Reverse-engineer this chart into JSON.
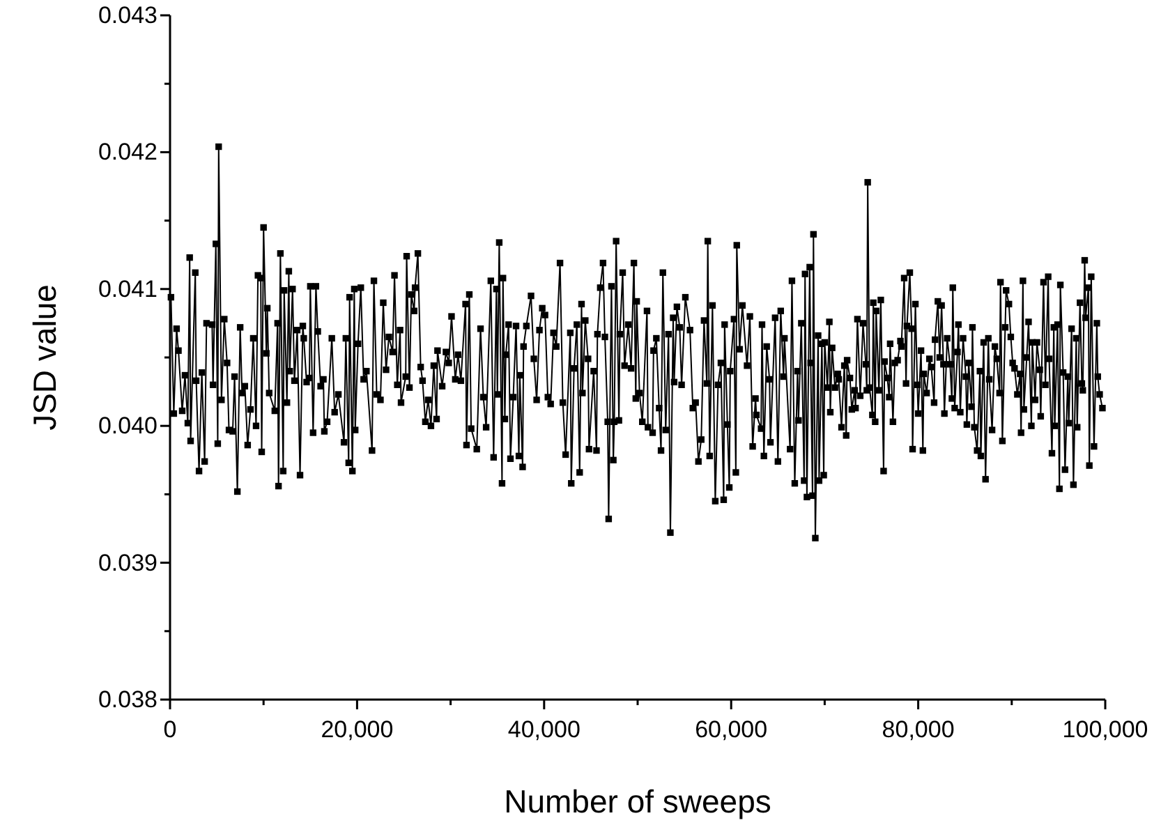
{
  "chart_data": {
    "type": "line",
    "xlabel": "Number of sweeps",
    "ylabel": "JSD value",
    "marker": "square",
    "line_style": "solid",
    "grid": false,
    "xlim": [
      0,
      100000
    ],
    "ylim": [
      0.038,
      0.043
    ],
    "xticks": [
      {
        "value": 0,
        "label": "0"
      },
      {
        "value": 10000,
        "label": null
      },
      {
        "value": 20000,
        "label": "20,000"
      },
      {
        "value": 30000,
        "label": null
      },
      {
        "value": 40000,
        "label": "40,000"
      },
      {
        "value": 50000,
        "label": null
      },
      {
        "value": 60000,
        "label": "60,000"
      },
      {
        "value": 70000,
        "label": null
      },
      {
        "value": 80000,
        "label": "80,000"
      },
      {
        "value": 90000,
        "label": null
      },
      {
        "value": 100000,
        "label": "100,000"
      }
    ],
    "yticks": [
      0.038,
      {
        "value": 0.0385,
        "label": null
      },
      0.039,
      {
        "value": 0.0395,
        "label": null
      },
      {
        "value": 0.04,
        "label": "0.040"
      },
      {
        "value": 0.0405,
        "label": null
      },
      0.041,
      {
        "value": 0.0415,
        "label": null
      },
      0.042,
      {
        "value": 0.0425,
        "label": null
      },
      0.043
    ],
    "series": [
      {
        "color": "#000000",
        "x": [
          100,
          400,
          700,
          900,
          1300,
          1600,
          1900,
          2100,
          2200,
          2700,
          2800,
          3100,
          3400,
          3700,
          3900,
          4500,
          4600,
          4900,
          5100,
          5200,
          5500,
          5800,
          6100,
          6300,
          6700,
          6900,
          7200,
          7500,
          7700,
          8000,
          8300,
          8600,
          8900,
          9200,
          9400,
          9700,
          9800,
          10000,
          10300,
          10400,
          10600,
          11200,
          11500,
          11600,
          11800,
          12100,
          12200,
          12500,
          12700,
          12800,
          13100,
          13300,
          13600,
          13900,
          14200,
          14300,
          14600,
          14900,
          15000,
          15300,
          15600,
          15800,
          16100,
          16400,
          16500,
          16800,
          17300,
          17600,
          18000,
          18600,
          18800,
          19100,
          19200,
          19500,
          19700,
          19800,
          20100,
          20400,
          20700,
          21000,
          21600,
          21800,
          22100,
          22500,
          22800,
          23100,
          23400,
          23800,
          24000,
          24300,
          24600,
          24700,
          25200,
          25300,
          25600,
          25800,
          26100,
          26200,
          26500,
          26800,
          27000,
          27300,
          27600,
          27900,
          28200,
          28500,
          28600,
          29100,
          29500,
          29800,
          30100,
          30500,
          30800,
          31100,
          31600,
          31700,
          32000,
          32200,
          32800,
          33200,
          33500,
          33800,
          34300,
          34600,
          34900,
          35000,
          35200,
          35500,
          35600,
          35800,
          35900,
          36200,
          36400,
          36700,
          37000,
          37300,
          37400,
          37700,
          37800,
          38100,
          38600,
          38900,
          39200,
          39500,
          39800,
          40100,
          40400,
          40700,
          41000,
          41300,
          41700,
          42000,
          42300,
          42800,
          42900,
          43200,
          43500,
          43800,
          44000,
          44100,
          44400,
          44700,
          44800,
          45300,
          45600,
          45700,
          46000,
          46300,
          46500,
          46800,
          46900,
          47200,
          47400,
          47500,
          47700,
          48000,
          48100,
          48400,
          48600,
          49000,
          49300,
          49600,
          49800,
          49900,
          50200,
          50500,
          51000,
          51100,
          51600,
          51700,
          52000,
          52300,
          52500,
          52700,
          53000,
          53300,
          53500,
          53800,
          53900,
          54200,
          54500,
          54700,
          55100,
          55600,
          55900,
          56200,
          56500,
          56800,
          57100,
          57400,
          57500,
          57700,
          58000,
          58300,
          58600,
          58900,
          59200,
          59300,
          59600,
          59800,
          59900,
          60300,
          60500,
          60600,
          60900,
          61200,
          61700,
          62000,
          62300,
          62600,
          62700,
          63200,
          63300,
          63500,
          63800,
          64100,
          64200,
          64700,
          65000,
          65300,
          65600,
          65700,
          66300,
          66500,
          66800,
          67100,
          67200,
          67500,
          67800,
          67900,
          68100,
          68400,
          68500,
          68700,
          68800,
          69000,
          69300,
          69400,
          69700,
          69900,
          70000,
          70300,
          70500,
          70600,
          70800,
          71100,
          71400,
          71500,
          71800,
          72100,
          72300,
          72400,
          72700,
          72900,
          73200,
          73300,
          73500,
          73800,
          74100,
          74400,
          74500,
          74600,
          74800,
          75100,
          75200,
          75400,
          75500,
          75800,
          76000,
          76300,
          76400,
          76700,
          76900,
          77000,
          77300,
          77500,
          77800,
          78100,
          78200,
          78500,
          78700,
          78800,
          79100,
          79300,
          79400,
          79700,
          79900,
          80000,
          80300,
          80500,
          80600,
          80900,
          81200,
          81400,
          81700,
          81800,
          82100,
          82300,
          82500,
          82700,
          82800,
          83100,
          83400,
          83600,
          83700,
          83900,
          84200,
          84300,
          84500,
          84800,
          85100,
          85200,
          85400,
          85700,
          85800,
          86000,
          86300,
          86600,
          86700,
          87000,
          87200,
          87500,
          87600,
          87900,
          88200,
          88400,
          88700,
          88800,
          89000,
          89300,
          89400,
          89700,
          89900,
          90100,
          90300,
          90600,
          90900,
          91000,
          91200,
          91300,
          91600,
          91800,
          92100,
          92200,
          92500,
          92700,
          93000,
          93100,
          93400,
          93600,
          93900,
          94000,
          94300,
          94500,
          94600,
          94900,
          95100,
          95200,
          95500,
          95700,
          96000,
          96100,
          96400,
          96600,
          96900,
          97000,
          97300,
          97500,
          97600,
          97800,
          97900,
          98200,
          98300,
          98500,
          98800,
          99100,
          99200,
          99400,
          99700
        ],
        "values": [
          0.04094,
          0.04009,
          0.04071,
          0.04055,
          0.04011,
          0.04037,
          0.04002,
          0.04123,
          0.03989,
          0.04112,
          0.04033,
          0.03967,
          0.04039,
          0.03974,
          0.04075,
          0.04074,
          0.0403,
          0.04133,
          0.03987,
          0.04204,
          0.04019,
          0.04078,
          0.04046,
          0.03997,
          0.03996,
          0.04036,
          0.03952,
          0.04072,
          0.04024,
          0.04029,
          0.03986,
          0.04012,
          0.04064,
          0.04,
          0.0411,
          0.04108,
          0.03981,
          0.04145,
          0.04053,
          0.04086,
          0.04024,
          0.04011,
          0.04075,
          0.03956,
          0.04126,
          0.03967,
          0.04099,
          0.04017,
          0.04113,
          0.0404,
          0.041,
          0.04033,
          0.0407,
          0.03964,
          0.04073,
          0.04064,
          0.04032,
          0.04035,
          0.04102,
          0.03995,
          0.04102,
          0.04069,
          0.04029,
          0.04034,
          0.03996,
          0.04003,
          0.04064,
          0.0401,
          0.04023,
          0.03988,
          0.04064,
          0.03973,
          0.04094,
          0.03967,
          0.041,
          0.03997,
          0.0406,
          0.04101,
          0.04034,
          0.0404,
          0.03982,
          0.04106,
          0.04023,
          0.04019,
          0.0409,
          0.04041,
          0.04065,
          0.04054,
          0.0411,
          0.0403,
          0.0407,
          0.04017,
          0.04036,
          0.04124,
          0.04028,
          0.04096,
          0.04084,
          0.04101,
          0.04126,
          0.04043,
          0.04033,
          0.04003,
          0.04019,
          0.04,
          0.04044,
          0.04005,
          0.04055,
          0.04029,
          0.04054,
          0.04046,
          0.0408,
          0.04034,
          0.04052,
          0.04033,
          0.04089,
          0.03986,
          0.04096,
          0.03998,
          0.03983,
          0.04071,
          0.04021,
          0.03999,
          0.04106,
          0.03977,
          0.041,
          0.04023,
          0.04134,
          0.03958,
          0.04108,
          0.04005,
          0.04052,
          0.04074,
          0.03976,
          0.04021,
          0.04073,
          0.03978,
          0.04037,
          0.0397,
          0.04058,
          0.04073,
          0.04095,
          0.04049,
          0.04019,
          0.0407,
          0.04086,
          0.04081,
          0.04021,
          0.04016,
          0.04068,
          0.04058,
          0.04119,
          0.04017,
          0.03979,
          0.04068,
          0.03958,
          0.04042,
          0.04074,
          0.03966,
          0.04089,
          0.04024,
          0.04077,
          0.04049,
          0.03983,
          0.0404,
          0.03982,
          0.04067,
          0.04101,
          0.04119,
          0.04065,
          0.04003,
          0.03932,
          0.04102,
          0.03975,
          0.04003,
          0.04135,
          0.04004,
          0.04067,
          0.04112,
          0.04044,
          0.04074,
          0.04042,
          0.04119,
          0.0402,
          0.04091,
          0.04024,
          0.04003,
          0.04084,
          0.03999,
          0.03995,
          0.04055,
          0.04064,
          0.04013,
          0.03982,
          0.04112,
          0.03997,
          0.04067,
          0.03922,
          0.04079,
          0.04032,
          0.04087,
          0.04072,
          0.0403,
          0.04094,
          0.0407,
          0.04013,
          0.04017,
          0.03974,
          0.0399,
          0.04077,
          0.04031,
          0.04135,
          0.03978,
          0.04088,
          0.03945,
          0.0403,
          0.04046,
          0.03946,
          0.04074,
          0.04001,
          0.03955,
          0.0404,
          0.04078,
          0.03966,
          0.04132,
          0.04056,
          0.04088,
          0.04044,
          0.0408,
          0.03985,
          0.0402,
          0.04008,
          0.03998,
          0.04074,
          0.03978,
          0.04058,
          0.04034,
          0.03988,
          0.04079,
          0.03974,
          0.04084,
          0.04036,
          0.04064,
          0.03983,
          0.04106,
          0.03958,
          0.0404,
          0.04004,
          0.04075,
          0.0396,
          0.04111,
          0.03948,
          0.04116,
          0.04046,
          0.03949,
          0.0414,
          0.03918,
          0.04066,
          0.0396,
          0.0406,
          0.03964,
          0.04061,
          0.04028,
          0.04076,
          0.0401,
          0.04057,
          0.04028,
          0.04038,
          0.04034,
          0.03999,
          0.04044,
          0.03993,
          0.04048,
          0.04035,
          0.04012,
          0.04026,
          0.04013,
          0.04078,
          0.04022,
          0.04075,
          0.04045,
          0.04026,
          0.04178,
          0.04028,
          0.04008,
          0.0409,
          0.04003,
          0.04084,
          0.04026,
          0.04092,
          0.03967,
          0.04047,
          0.04035,
          0.04021,
          0.0406,
          0.04003,
          0.04046,
          0.04048,
          0.04062,
          0.04058,
          0.04108,
          0.04031,
          0.04073,
          0.04112,
          0.04071,
          0.03983,
          0.04089,
          0.0403,
          0.04009,
          0.04055,
          0.03982,
          0.04038,
          0.04024,
          0.04049,
          0.04043,
          0.04017,
          0.04063,
          0.04091,
          0.0405,
          0.04088,
          0.04045,
          0.04009,
          0.04064,
          0.04045,
          0.0402,
          0.04101,
          0.04013,
          0.04054,
          0.04074,
          0.0401,
          0.04064,
          0.04036,
          0.04001,
          0.04046,
          0.04014,
          0.04072,
          0.03999,
          0.03982,
          0.0404,
          0.03978,
          0.04061,
          0.03961,
          0.04064,
          0.04034,
          0.03997,
          0.04058,
          0.04049,
          0.04024,
          0.04105,
          0.03989,
          0.04072,
          0.04099,
          0.04089,
          0.04065,
          0.04046,
          0.04042,
          0.04023,
          0.04038,
          0.03995,
          0.04106,
          0.04012,
          0.0405,
          0.04076,
          0.04,
          0.04061,
          0.04019,
          0.04061,
          0.04041,
          0.04007,
          0.04105,
          0.0403,
          0.04109,
          0.04049,
          0.0398,
          0.04072,
          0.04,
          0.04074,
          0.03954,
          0.04103,
          0.04039,
          0.03968,
          0.04036,
          0.04002,
          0.04071,
          0.03957,
          0.04064,
          0.03999,
          0.0409,
          0.04031,
          0.04026,
          0.04121,
          0.04079,
          0.04101,
          0.03971,
          0.04109,
          0.03985,
          0.04075,
          0.04036,
          0.04023,
          0.04013
        ]
      }
    ]
  }
}
